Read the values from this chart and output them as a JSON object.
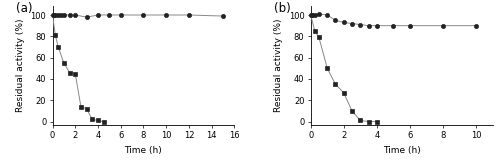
{
  "panel_a": {
    "label": "(a)",
    "circles_x": [
      0,
      0.25,
      0.5,
      0.75,
      1.0,
      1.5,
      2,
      3,
      4,
      5,
      6,
      8,
      10,
      12,
      15
    ],
    "circles_y": [
      100,
      100,
      100,
      100,
      100,
      100,
      100,
      98,
      100,
      100,
      100,
      100,
      100,
      100,
      99
    ],
    "squares_x": [
      0,
      0.25,
      0.5,
      1,
      1.5,
      2,
      2.5,
      3,
      3.5,
      4,
      4.5
    ],
    "squares_y": [
      100,
      81,
      70,
      55,
      46,
      45,
      14,
      12,
      2,
      1,
      0
    ],
    "xlim": [
      0,
      16
    ],
    "xticks": [
      0,
      2,
      4,
      6,
      8,
      10,
      12,
      14,
      16
    ],
    "ylim": [
      -3,
      108
    ],
    "yticks": [
      0,
      20,
      40,
      60,
      80,
      100
    ],
    "xlabel": "Time (h)",
    "ylabel": "Residual activity (%)"
  },
  "panel_b": {
    "label": "(b)",
    "circles_x": [
      0,
      0.1,
      0.25,
      0.5,
      1,
      1.5,
      2,
      2.5,
      3,
      3.5,
      4,
      5,
      6,
      8,
      10
    ],
    "circles_y": [
      100,
      100,
      100,
      101,
      100,
      95,
      93,
      92,
      91,
      90,
      90,
      90,
      90,
      90,
      90
    ],
    "squares_x": [
      0,
      0.25,
      0.5,
      1,
      1.5,
      2,
      2.5,
      3,
      3.5,
      4
    ],
    "squares_y": [
      100,
      85,
      79,
      50,
      35,
      27,
      10,
      1,
      0,
      0
    ],
    "xlim": [
      0,
      11
    ],
    "xticks": [
      0,
      2,
      4,
      6,
      8,
      10
    ],
    "ylim": [
      -3,
      108
    ],
    "yticks": [
      0,
      20,
      40,
      60,
      80,
      100
    ],
    "xlabel": "Time (h)",
    "ylabel": "Residual activity (%)"
  },
  "line_color": "#888888",
  "marker_circle": "o",
  "marker_square": "s",
  "marker_size": 3.0,
  "marker_color": "#222222",
  "line_width": 0.7,
  "label_fontsize": 6.5,
  "tick_fontsize": 6.0,
  "panel_label_fontsize": 8.5
}
